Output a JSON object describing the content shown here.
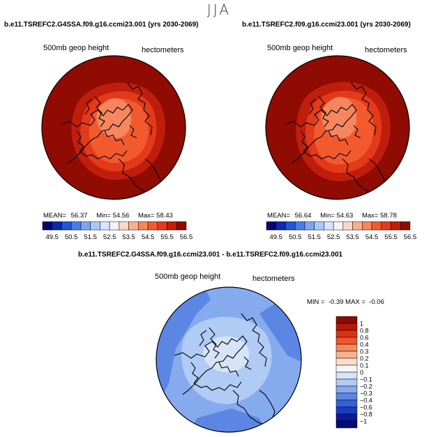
{
  "season_title": "JJA",
  "panels": [
    {
      "title": "b.e11.TSREFC2.G4SSA.f09.g16.ccmi23.001 (yrs 2030-2069)",
      "variable": "500mb geop height",
      "units": "hectometers",
      "stats": {
        "mean_label": "MEAN=",
        "mean": "56.37",
        "min_label": "Min=",
        "min": "54.56",
        "max_label": "Max=",
        "max": "58.43"
      }
    },
    {
      "title": "b.e11.TSREFC2.f09.g16.ccmi23.001 (yrs 2030-2069)",
      "variable": "500mb geop height",
      "units": "hectometers",
      "stats": {
        "mean_label": "MEAN=",
        "mean": "56.64",
        "min_label": "Min=",
        "min": "54.63",
        "max_label": "Max=",
        "max": "58.78"
      }
    }
  ],
  "diff_panel": {
    "title": "b.e11.TSREFC2.G4SSA.f09.g16.ccmi23.001 - b.e11.TSREFC2.f09.g16.ccmi23.001",
    "variable": "500mb geop height",
    "units": "hectometers",
    "minmax": "MIN =  -0.39 MAX =  -0.06"
  },
  "chart_data": [
    {
      "type": "heatmap",
      "projection": "north polar stereographic",
      "title": "b.e11.TSREFC2.G4SSA.f09.g16.ccmi23.001 (yrs 2030-2069)",
      "variable": "500mb geop height",
      "units": "hectometers",
      "mean": 56.37,
      "min": 54.56,
      "max": 58.43,
      "colorbar_ticks": [
        "49.5",
        "50.5",
        "51.5",
        "52.5",
        "53.5",
        "54.5",
        "55.5",
        "56.5"
      ],
      "colorbar_colors": [
        "#08086b",
        "#0a2ab0",
        "#2454d6",
        "#4a7ee6",
        "#7aa6f0",
        "#a9c8f6",
        "#d4e6fb",
        "#f4f4f4",
        "#fbd8c6",
        "#f8b08e",
        "#f6865e",
        "#f25a2e",
        "#e23a1a",
        "#c01e0c",
        "#900b02"
      ]
    },
    {
      "type": "heatmap",
      "projection": "north polar stereographic",
      "title": "b.e11.TSREFC2.f09.g16.ccmi23.001 (yrs 2030-2069)",
      "variable": "500mb geop height",
      "units": "hectometers",
      "mean": 56.64,
      "min": 54.63,
      "max": 58.78,
      "colorbar_ticks": [
        "49.5",
        "50.5",
        "51.5",
        "52.5",
        "53.5",
        "54.5",
        "55.5",
        "56.5"
      ],
      "colorbar_colors": [
        "#08086b",
        "#0a2ab0",
        "#2454d6",
        "#4a7ee6",
        "#7aa6f0",
        "#a9c8f6",
        "#d4e6fb",
        "#f4f4f4",
        "#fbd8c6",
        "#f8b08e",
        "#f6865e",
        "#f25a2e",
        "#e23a1a",
        "#c01e0c",
        "#900b02"
      ]
    },
    {
      "type": "heatmap",
      "projection": "north polar stereographic",
      "title": "b.e11.TSREFC2.G4SSA.f09.g16.ccmi23.001 - b.e11.TSREFC2.f09.g16.ccmi23.001",
      "variable": "500mb geop height",
      "units": "hectometers",
      "min": -0.39,
      "max": -0.06,
      "colorbar_ticks": [
        "1",
        "0.8",
        "0.6",
        "0.4",
        "0.3",
        "0.2",
        "0.1",
        "0",
        "-0.1",
        "-0.2",
        "-0.3",
        "-0.4",
        "-0.6",
        "-0.8",
        "-1"
      ],
      "colorbar_colors": [
        "#8c0a02",
        "#b81808",
        "#dc3214",
        "#f0562c",
        "#f6885e",
        "#f9b292",
        "#fcdcca",
        "#f6f6f8",
        "#d6e4f8",
        "#b0cbf4",
        "#86aaee",
        "#5b86e4",
        "#3462d6",
        "#1a3cc0",
        "#0a1c98",
        "#060a72"
      ]
    }
  ]
}
